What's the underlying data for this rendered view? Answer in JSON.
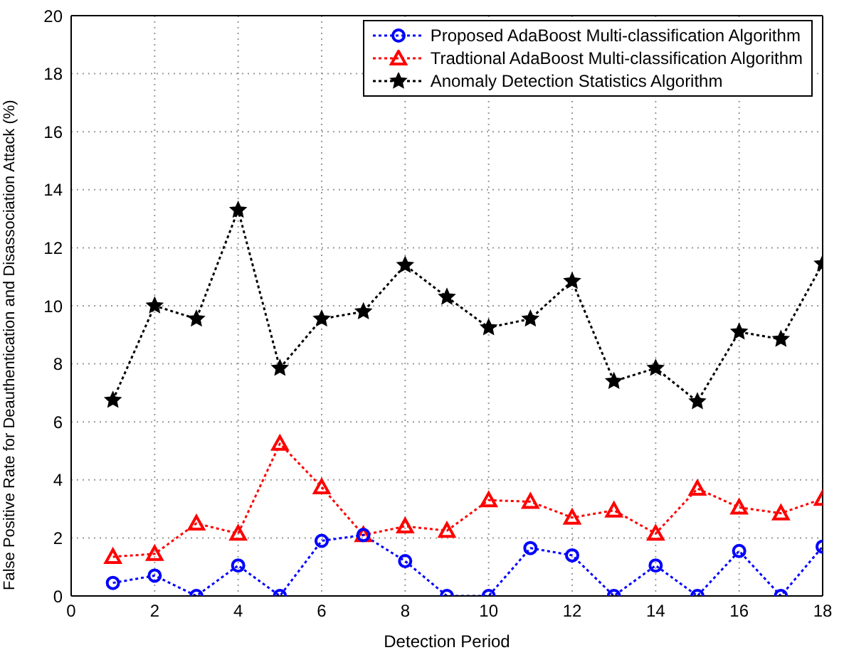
{
  "chart_data": {
    "type": "line",
    "xlabel": "Detection Period",
    "ylabel": "False Positive Rate for Deauthentication and Disassociation Attack (%)",
    "x": [
      1,
      2,
      3,
      4,
      5,
      6,
      7,
      8,
      9,
      10,
      11,
      12,
      13,
      14,
      15,
      16,
      17,
      18
    ],
    "series": [
      {
        "name": "Proposed AdaBoost Multi-classification Algorithm",
        "color": "#0000ff",
        "marker": "circle",
        "values": [
          0.45,
          0.7,
          0,
          1.05,
          0,
          1.9,
          2.1,
          1.2,
          0,
          0,
          1.65,
          1.4,
          0,
          1.05,
          0,
          1.55,
          0,
          1.7
        ]
      },
      {
        "name": "Tradtional AdaBoost Multi-classification Algorithm",
        "color": "#ff0000",
        "marker": "triangle",
        "values": [
          1.35,
          1.45,
          2.5,
          2.15,
          5.25,
          3.75,
          2.1,
          2.4,
          2.25,
          3.3,
          3.25,
          2.7,
          2.95,
          2.15,
          3.7,
          3.05,
          2.85,
          3.35
        ]
      },
      {
        "name": "Anomaly Detection Statistics Algorithm",
        "color": "#000000",
        "marker": "star",
        "values": [
          6.75,
          10,
          9.55,
          13.3,
          7.85,
          9.55,
          9.8,
          11.4,
          10.3,
          9.25,
          9.55,
          10.85,
          7.4,
          7.85,
          6.7,
          9.1,
          8.85,
          11.45
        ]
      }
    ],
    "xlim": [
      0,
      18
    ],
    "xticks": [
      0,
      2,
      4,
      6,
      8,
      10,
      12,
      14,
      16,
      18
    ],
    "ylim": [
      0,
      20
    ],
    "yticks": [
      0,
      2,
      4,
      6,
      8,
      10,
      12,
      14,
      16,
      18,
      20
    ],
    "grid": true,
    "legend": "top right",
    "line_style": "dotted"
  }
}
